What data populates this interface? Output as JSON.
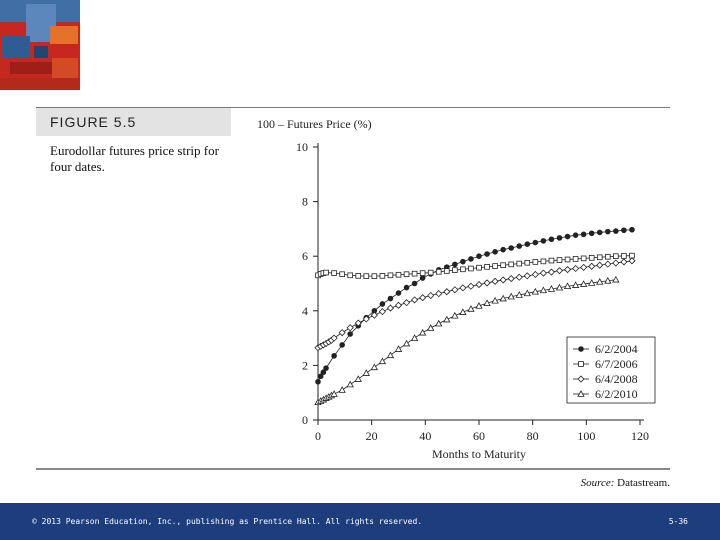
{
  "figure": {
    "label": "FIGURE 5.5",
    "caption": "Eurodollar futures price strip for four dates."
  },
  "source": {
    "label": "Source:",
    "name": "Datastream."
  },
  "footer": {
    "copyright": "© 2013 Pearson Education, Inc., publishing as Prentice Hall.  All rights reserved.",
    "slide_number": "5-36"
  },
  "colors": {
    "footer_bg": "#1d3d7c",
    "header_bg": "#e3e3e3",
    "ink": "#222222"
  },
  "chart_data": {
    "type": "line",
    "ylabel": "100 – Futures Price (%)",
    "xlabel": "Months to Maturity",
    "xlim": [
      0,
      120
    ],
    "ylim": [
      0,
      10
    ],
    "xticks": [
      0,
      20,
      40,
      60,
      80,
      100,
      120
    ],
    "yticks": [
      0,
      2,
      4,
      6,
      8,
      10
    ],
    "legend_position": "bottom-right",
    "series": [
      {
        "name": "6/2/2004",
        "marker": "filled-circle",
        "x": [
          0,
          1,
          2,
          3,
          6,
          9,
          12,
          15,
          18,
          21,
          24,
          27,
          30,
          33,
          36,
          39,
          42,
          45,
          48,
          51,
          54,
          57,
          60,
          63,
          66,
          69,
          72,
          75,
          78,
          81,
          84,
          87,
          90,
          93,
          96,
          99,
          102,
          105,
          108,
          111,
          114,
          117
        ],
        "y": [
          1.4,
          1.6,
          1.75,
          1.9,
          2.35,
          2.75,
          3.15,
          3.45,
          3.75,
          4.0,
          4.25,
          4.45,
          4.65,
          4.85,
          5.0,
          5.2,
          5.35,
          5.5,
          5.6,
          5.7,
          5.8,
          5.9,
          6.0,
          6.08,
          6.16,
          6.24,
          6.3,
          6.37,
          6.44,
          6.5,
          6.56,
          6.62,
          6.67,
          6.72,
          6.77,
          6.8,
          6.84,
          6.87,
          6.9,
          6.92,
          6.95,
          6.97
        ]
      },
      {
        "name": "6/7/2006",
        "marker": "open-square",
        "x": [
          0,
          1,
          2,
          3,
          6,
          9,
          12,
          15,
          18,
          21,
          24,
          27,
          30,
          33,
          36,
          39,
          42,
          45,
          48,
          51,
          54,
          57,
          60,
          63,
          66,
          69,
          72,
          75,
          78,
          81,
          84,
          87,
          90,
          93,
          96,
          99,
          102,
          105,
          108,
          111,
          114,
          117
        ],
        "y": [
          5.3,
          5.35,
          5.38,
          5.4,
          5.38,
          5.34,
          5.3,
          5.28,
          5.27,
          5.27,
          5.28,
          5.3,
          5.32,
          5.34,
          5.36,
          5.38,
          5.4,
          5.43,
          5.46,
          5.49,
          5.52,
          5.55,
          5.58,
          5.61,
          5.64,
          5.67,
          5.7,
          5.73,
          5.76,
          5.79,
          5.81,
          5.84,
          5.86,
          5.88,
          5.9,
          5.92,
          5.94,
          5.96,
          5.98,
          6.0,
          6.01,
          6.02
        ]
      },
      {
        "name": "6/4/2008",
        "marker": "open-diamond",
        "x": [
          0,
          1,
          2,
          3,
          4,
          5,
          6,
          9,
          12,
          15,
          18,
          21,
          24,
          27,
          30,
          33,
          36,
          39,
          42,
          45,
          48,
          51,
          54,
          57,
          60,
          63,
          66,
          69,
          72,
          75,
          78,
          81,
          84,
          87,
          90,
          93,
          96,
          99,
          102,
          105,
          108,
          111,
          114,
          117
        ],
        "y": [
          2.65,
          2.7,
          2.75,
          2.8,
          2.86,
          2.92,
          3.0,
          3.2,
          3.38,
          3.55,
          3.7,
          3.84,
          3.97,
          4.1,
          4.2,
          4.3,
          4.4,
          4.48,
          4.56,
          4.63,
          4.7,
          4.77,
          4.84,
          4.9,
          4.96,
          5.02,
          5.08,
          5.13,
          5.18,
          5.23,
          5.28,
          5.33,
          5.38,
          5.42,
          5.47,
          5.51,
          5.55,
          5.59,
          5.63,
          5.67,
          5.71,
          5.75,
          5.79,
          5.83
        ]
      },
      {
        "name": "6/2/2010",
        "marker": "open-triangle",
        "x": [
          0,
          1,
          2,
          3,
          4,
          5,
          6,
          9,
          12,
          15,
          18,
          21,
          24,
          27,
          30,
          33,
          36,
          39,
          42,
          45,
          48,
          51,
          54,
          57,
          60,
          63,
          66,
          69,
          72,
          75,
          78,
          81,
          84,
          87,
          90,
          93,
          96,
          99,
          102,
          105,
          108,
          111
        ],
        "y": [
          0.65,
          0.7,
          0.75,
          0.8,
          0.85,
          0.9,
          0.95,
          1.1,
          1.3,
          1.5,
          1.72,
          1.93,
          2.15,
          2.37,
          2.6,
          2.8,
          3.0,
          3.2,
          3.37,
          3.53,
          3.68,
          3.82,
          3.95,
          4.07,
          4.18,
          4.28,
          4.37,
          4.45,
          4.52,
          4.58,
          4.64,
          4.7,
          4.75,
          4.8,
          4.85,
          4.9,
          4.94,
          4.98,
          5.02,
          5.06,
          5.1,
          5.14
        ]
      }
    ]
  }
}
